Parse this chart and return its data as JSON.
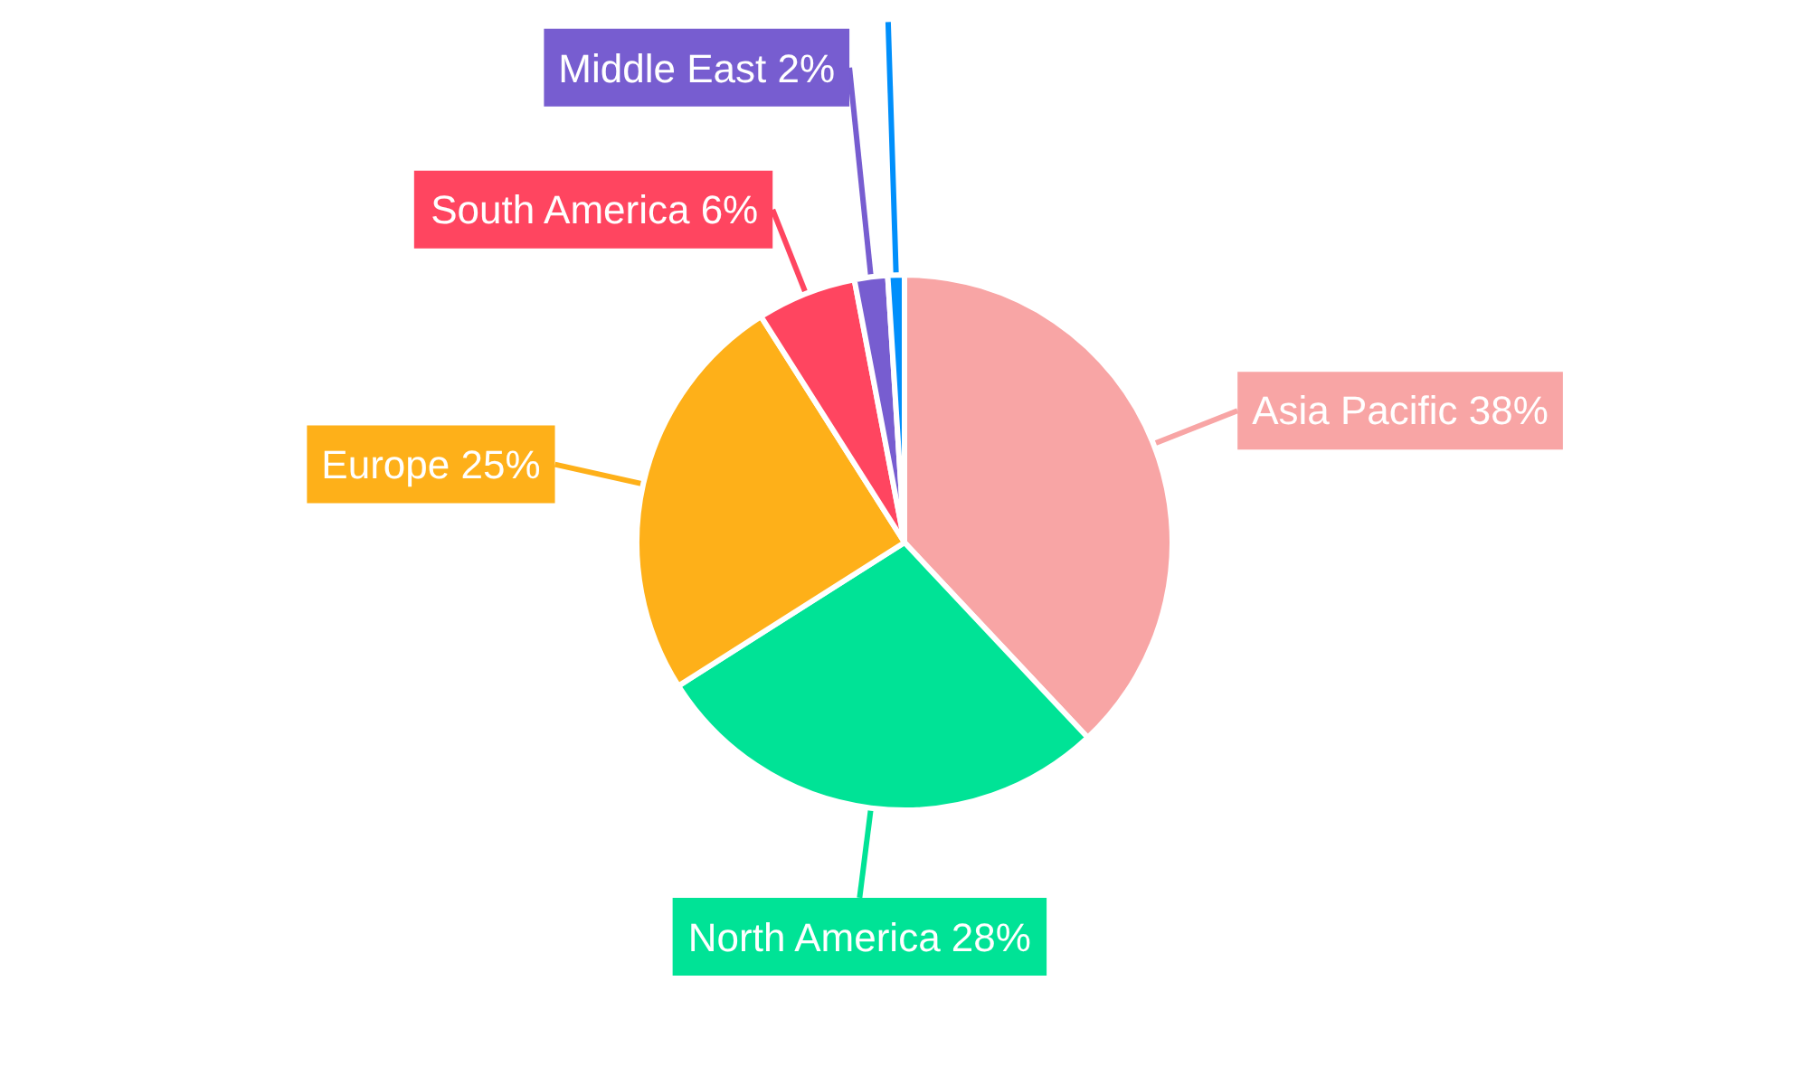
{
  "chart_data": {
    "type": "pie",
    "categories": [
      "Asia Pacific",
      "North America",
      "Europe",
      "South America",
      "Middle East",
      null
    ],
    "values": [
      38,
      28,
      25,
      6,
      2,
      1
    ],
    "colors": [
      "#f8a5a5",
      "#00e396",
      "#feb019",
      "#ff4560",
      "#775dd0",
      "#008ffb"
    ],
    "value_labels": [
      "38%",
      "28%",
      "25%",
      "6%",
      "2%",
      null
    ]
  }
}
